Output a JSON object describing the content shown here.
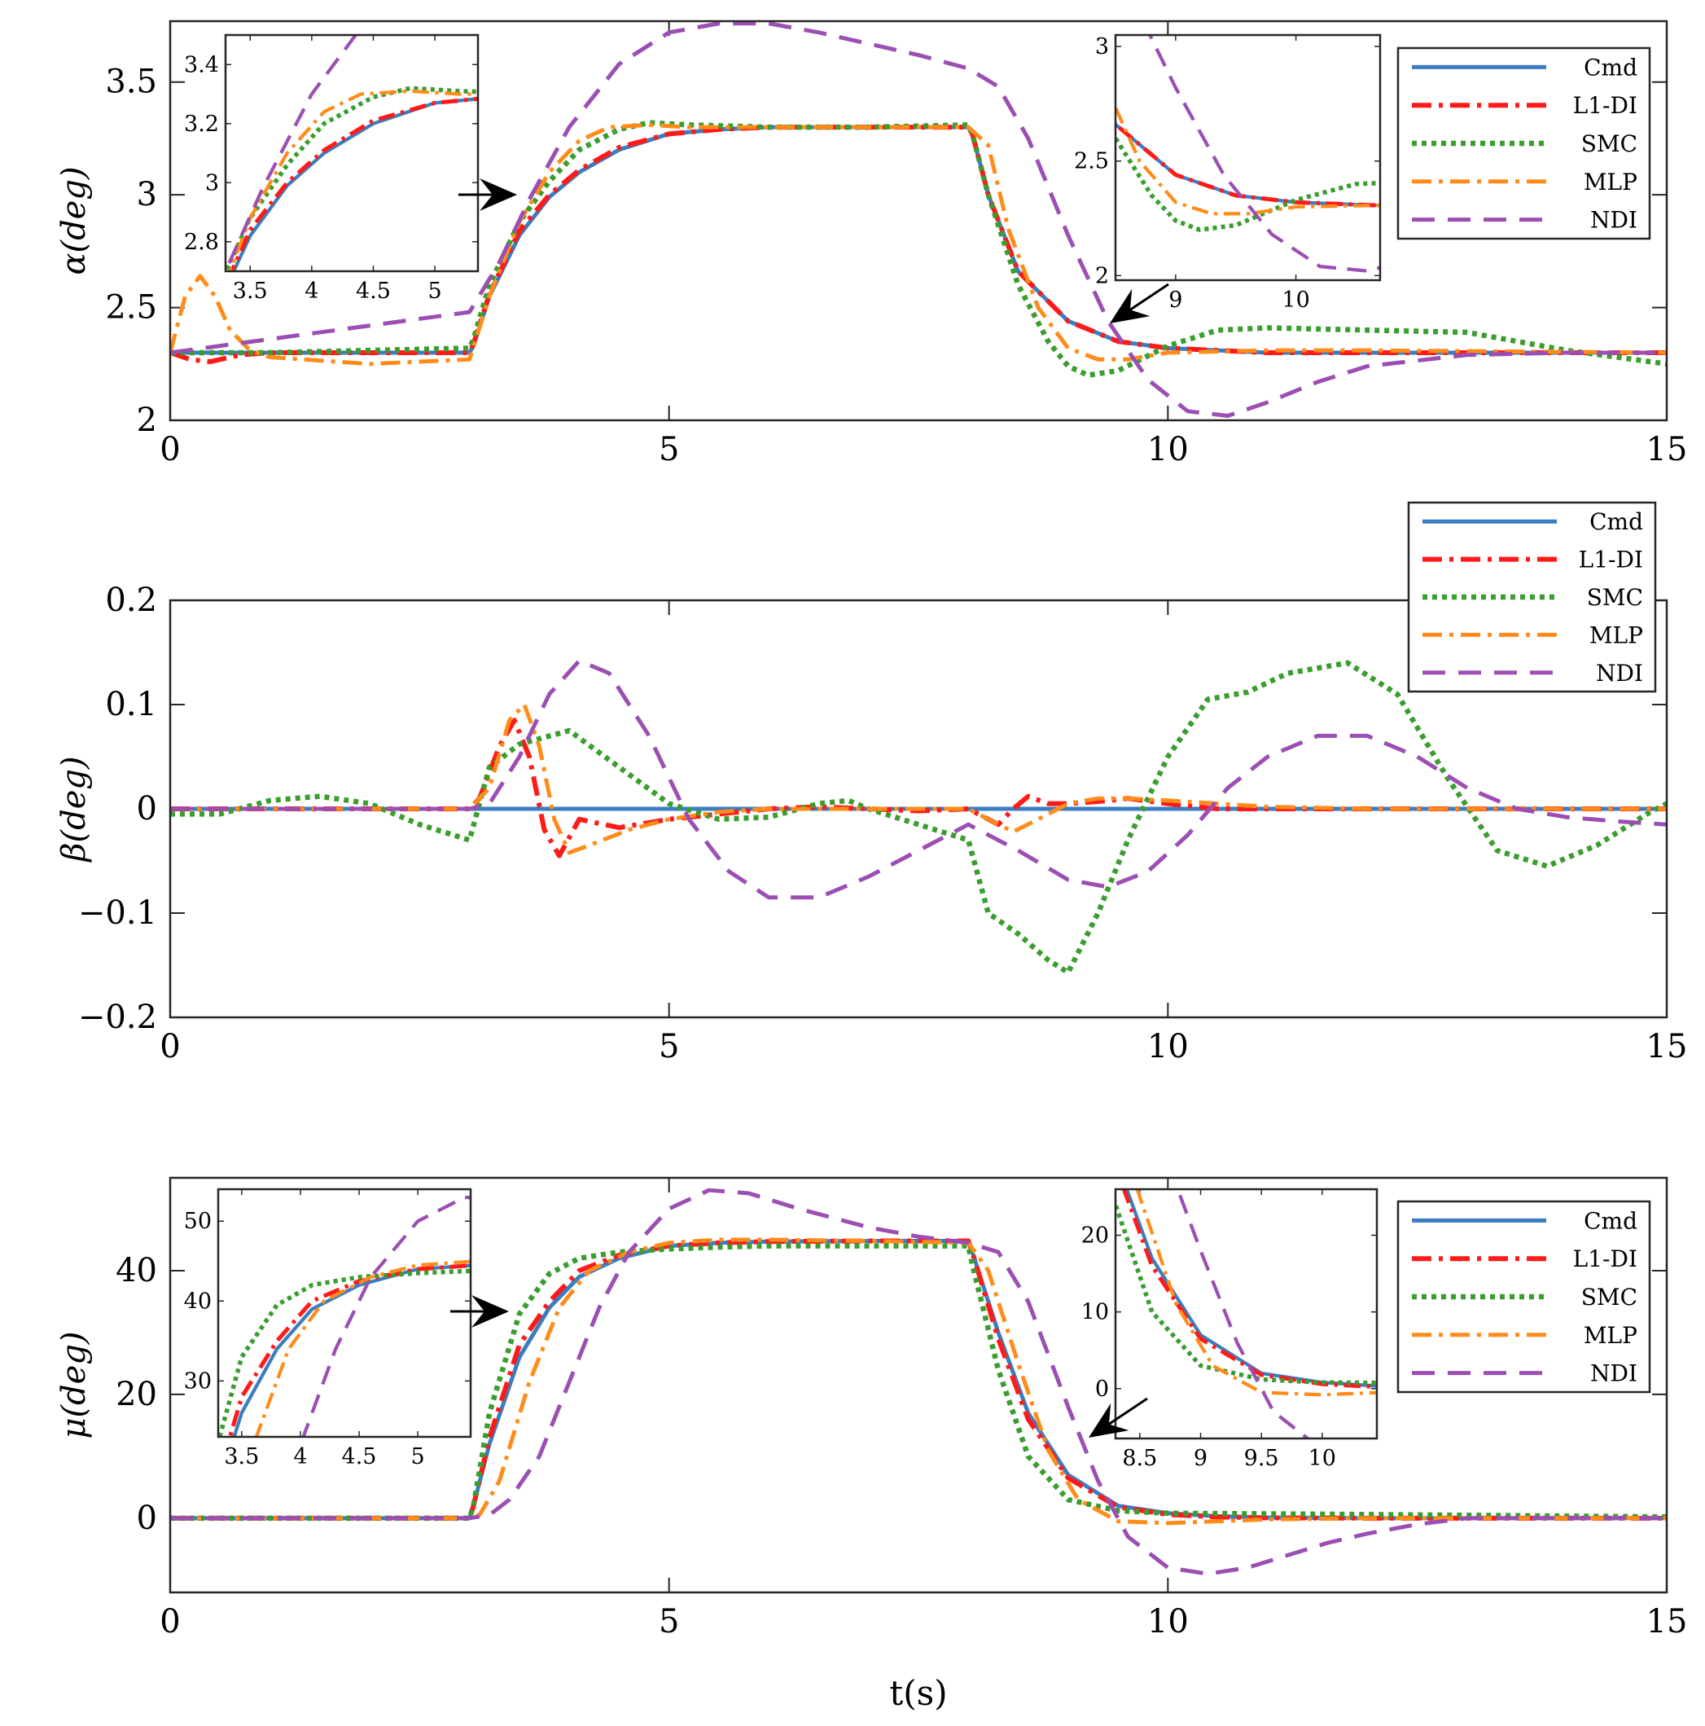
{
  "figure": {
    "xlabel": "t(s)"
  },
  "legend_entries": [
    {
      "name": "Cmd",
      "color": "#3A7DC0",
      "dash": "solid"
    },
    {
      "name": "L1-DI",
      "color": "#FF1A1A",
      "dash": "dashdot"
    },
    {
      "name": "SMC",
      "color": "#3A9E2E",
      "dash": "dotted"
    },
    {
      "name": "MLP",
      "color": "#FF8C1A",
      "dash": "dashdot"
    },
    {
      "name": "NDI",
      "color": "#9B4FB3",
      "dash": "dashed"
    }
  ],
  "chart_data": [
    {
      "id": "alpha",
      "type": "line",
      "title": "",
      "ylabel": "α(deg)",
      "xlabel": "",
      "xlim": [
        0,
        15
      ],
      "ylim": [
        2,
        3.77
      ],
      "xticks": [
        0,
        5,
        10,
        15
      ],
      "xtick_labels": [
        "0",
        "5",
        "10",
        "15"
      ],
      "yticks": [
        2,
        2.5,
        3,
        3.5
      ],
      "ytick_labels": [
        "2",
        "2.5",
        "3",
        "3.5"
      ],
      "legend": "top-right",
      "series": [
        {
          "name": "Cmd",
          "x": [
            0,
            3,
            3.04,
            3.2,
            3.5,
            3.8,
            4.1,
            4.5,
            5,
            5.5,
            6,
            7,
            8,
            8.04,
            8.2,
            8.5,
            9,
            9.5,
            10,
            11,
            12,
            15
          ],
          "y": [
            2.3,
            2.3,
            2.33,
            2.55,
            2.82,
            2.99,
            3.1,
            3.2,
            3.27,
            3.29,
            3.3,
            3.3,
            3.3,
            3.27,
            3.0,
            2.66,
            2.44,
            2.35,
            2.32,
            2.3,
            2.3,
            2.3
          ]
        },
        {
          "name": "L1-DI",
          "x": [
            0,
            0.2,
            0.4,
            0.7,
            1,
            2,
            3,
            3.04,
            3.2,
            3.5,
            3.8,
            4.1,
            4.5,
            5,
            5.5,
            6,
            7,
            8,
            8.04,
            8.2,
            8.5,
            9,
            9.5,
            10,
            11,
            12,
            15
          ],
          "y": [
            2.3,
            2.27,
            2.26,
            2.29,
            2.3,
            2.3,
            2.3,
            2.34,
            2.56,
            2.84,
            3.0,
            3.11,
            3.21,
            3.27,
            3.29,
            3.3,
            3.3,
            3.3,
            3.27,
            3.0,
            2.66,
            2.44,
            2.35,
            2.32,
            2.3,
            2.3,
            2.3
          ]
        },
        {
          "name": "SMC",
          "x": [
            0,
            1,
            2,
            3,
            3.04,
            3.2,
            3.5,
            3.8,
            4.1,
            4.5,
            4.8,
            5.2,
            6,
            7,
            8,
            8.04,
            8.2,
            8.5,
            8.8,
            9,
            9.2,
            9.5,
            10,
            10.5,
            11,
            12,
            13,
            14,
            15
          ],
          "y": [
            2.3,
            2.3,
            2.31,
            2.32,
            2.36,
            2.6,
            2.88,
            3.06,
            3.2,
            3.29,
            3.32,
            3.31,
            3.3,
            3.3,
            3.31,
            3.27,
            3.0,
            2.6,
            2.35,
            2.24,
            2.2,
            2.22,
            2.33,
            2.4,
            2.41,
            2.4,
            2.39,
            2.31,
            2.25
          ]
        },
        {
          "name": "MLP",
          "x": [
            0,
            0.15,
            0.3,
            0.45,
            0.6,
            0.8,
            1,
            2,
            3,
            3.2,
            3.5,
            3.8,
            4.1,
            4.4,
            4.8,
            5.2,
            6,
            7,
            8,
            8.2,
            8.4,
            8.7,
            9,
            9.3,
            9.6,
            10,
            11,
            12,
            15
          ],
          "y": [
            2.3,
            2.55,
            2.64,
            2.55,
            2.4,
            2.31,
            2.28,
            2.25,
            2.27,
            2.55,
            2.88,
            3.1,
            3.24,
            3.3,
            3.31,
            3.3,
            3.3,
            3.3,
            3.3,
            3.22,
            2.85,
            2.5,
            2.32,
            2.27,
            2.27,
            2.3,
            2.31,
            2.31,
            2.3
          ]
        },
        {
          "name": "NDI",
          "x": [
            0,
            1,
            2,
            3,
            3.3,
            3.6,
            4,
            4.5,
            5,
            5.5,
            6,
            6.5,
            7,
            7.5,
            8,
            8.3,
            8.6,
            9,
            9.4,
            9.8,
            10.2,
            10.6,
            11,
            11.5,
            12,
            13,
            14,
            15
          ],
          "y": [
            2.3,
            2.36,
            2.42,
            2.48,
            2.7,
            2.98,
            3.3,
            3.58,
            3.72,
            3.76,
            3.76,
            3.72,
            3.67,
            3.62,
            3.56,
            3.48,
            3.25,
            2.82,
            2.44,
            2.18,
            2.04,
            2.02,
            2.08,
            2.17,
            2.24,
            2.29,
            2.3,
            2.3
          ]
        }
      ],
      "inset": {
        "xlim": [
          3.3,
          5.35
        ],
        "ylim": [
          2.7,
          3.5
        ],
        "xticks": [
          3.5,
          4,
          4.5,
          5
        ],
        "xtick_labels": [
          "3.5",
          "4",
          "4.5",
          "5"
        ],
        "yticks": [
          2.8,
          3.0,
          3.2,
          3.4
        ],
        "ytick_labels": [
          "2.8",
          "3",
          "3.2",
          "3.4"
        ]
      },
      "inset2": {
        "xlim": [
          8.5,
          10.7
        ],
        "ylim": [
          1.98,
          3.05
        ],
        "xticks": [
          9,
          10
        ],
        "xtick_labels": [
          "9",
          "10"
        ],
        "yticks": [
          2,
          2.5,
          3
        ],
        "ytick_labels": [
          "2",
          "2.5",
          "3"
        ]
      }
    },
    {
      "id": "beta",
      "type": "line",
      "title": "",
      "ylabel": "β(deg)",
      "xlabel": "",
      "xlim": [
        0,
        15
      ],
      "ylim": [
        -0.2,
        0.2
      ],
      "xticks": [
        0,
        5,
        10,
        15
      ],
      "xtick_labels": [
        "0",
        "5",
        "10",
        "15"
      ],
      "yticks": [
        -0.2,
        -0.1,
        0,
        0.1,
        0.2
      ],
      "ytick_labels": [
        "−0.2",
        "−0.1",
        "0",
        "0.1",
        "0.2"
      ],
      "legend": "top-right",
      "series": [
        {
          "name": "Cmd",
          "x": [
            0,
            15
          ],
          "y": [
            0,
            0
          ]
        },
        {
          "name": "L1-DI",
          "x": [
            0,
            3,
            3.1,
            3.3,
            3.45,
            3.6,
            3.75,
            3.9,
            4.1,
            4.5,
            5,
            5.5,
            6,
            6.5,
            7,
            7.5,
            8,
            8.3,
            8.45,
            8.6,
            8.8,
            9,
            9.3,
            9.6,
            10,
            10.5,
            11,
            12,
            13,
            15
          ],
          "y": [
            0,
            0,
            0.01,
            0.06,
            0.085,
            0.05,
            -0.02,
            -0.045,
            -0.01,
            -0.018,
            -0.01,
            -0.005,
            0,
            0.002,
            0,
            -0.002,
            0,
            -0.015,
            0,
            0.012,
            0.005,
            0.005,
            0.007,
            0.01,
            0.005,
            0,
            0,
            0,
            0,
            0
          ]
        },
        {
          "name": "SMC",
          "x": [
            0,
            0.5,
            1,
            1.5,
            2,
            2.5,
            3,
            3.2,
            3.5,
            4,
            4.5,
            5,
            5.5,
            6,
            6.5,
            6.8,
            7,
            7.5,
            8,
            8.2,
            8.5,
            8.8,
            9,
            9.3,
            9.6,
            10,
            10.4,
            10.8,
            11.2,
            11.8,
            12.3,
            12.8,
            13.3,
            13.8,
            14.3,
            14.8,
            15
          ],
          "y": [
            -0.005,
            -0.005,
            0.008,
            0.012,
            0.005,
            -0.015,
            -0.03,
            0.04,
            0.062,
            0.075,
            0.04,
            0.005,
            -0.01,
            -0.008,
            0.005,
            0.008,
            0,
            -0.015,
            -0.03,
            -0.1,
            -0.12,
            -0.145,
            -0.157,
            -0.1,
            -0.03,
            0.05,
            0.105,
            0.112,
            0.13,
            0.14,
            0.11,
            0.03,
            -0.04,
            -0.055,
            -0.035,
            -0.005,
            0.005
          ]
        },
        {
          "name": "MLP",
          "x": [
            0,
            3,
            3.2,
            3.4,
            3.55,
            3.7,
            3.85,
            4,
            4.2,
            4.6,
            5,
            5.5,
            6,
            7,
            8,
            8.2,
            8.45,
            8.7,
            9,
            9.3,
            9.6,
            10,
            11,
            12,
            15
          ],
          "y": [
            0,
            0,
            0.02,
            0.085,
            0.1,
            0.06,
            -0.01,
            -0.042,
            -0.035,
            -0.02,
            -0.01,
            -0.003,
            0,
            0,
            0,
            -0.01,
            -0.022,
            -0.01,
            0.005,
            0.01,
            0.01,
            0.008,
            0.002,
            0,
            0
          ]
        },
        {
          "name": "NDI",
          "x": [
            0,
            3,
            3.2,
            3.5,
            3.8,
            4.1,
            4.4,
            4.8,
            5.2,
            5.6,
            6,
            6.5,
            7,
            7.5,
            8,
            8.5,
            9,
            9.4,
            9.8,
            10.2,
            10.6,
            11,
            11.5,
            12,
            12.5,
            13,
            13.5,
            14,
            14.5,
            15
          ],
          "y": [
            0,
            0,
            0.005,
            0.05,
            0.11,
            0.142,
            0.13,
            0.07,
            -0.01,
            -0.06,
            -0.085,
            -0.085,
            -0.065,
            -0.04,
            -0.015,
            -0.04,
            -0.068,
            -0.075,
            -0.06,
            -0.025,
            0.02,
            0.05,
            0.07,
            0.07,
            0.05,
            0.02,
            0,
            -0.008,
            -0.012,
            -0.015
          ]
        }
      ]
    },
    {
      "id": "mu",
      "type": "line",
      "title": "",
      "ylabel": "μ(deg)",
      "xlabel": "t(s)",
      "xlim": [
        0,
        15
      ],
      "ylim": [
        -12,
        55
      ],
      "xticks": [
        0,
        5,
        10,
        15
      ],
      "xtick_labels": [
        "0",
        "5",
        "10",
        "15"
      ],
      "yticks": [
        0,
        20,
        40
      ],
      "ytick_labels": [
        "0",
        "20",
        "40"
      ],
      "legend": "top-right",
      "series": [
        {
          "name": "Cmd",
          "x": [
            0,
            3,
            3.04,
            3.2,
            3.5,
            3.8,
            4.1,
            4.5,
            5,
            5.5,
            6,
            7,
            8,
            8.04,
            8.3,
            8.6,
            9,
            9.5,
            10,
            10.5,
            11,
            12,
            15
          ],
          "y": [
            0,
            0,
            2,
            12,
            26,
            34,
            39,
            42,
            44,
            44.5,
            44.7,
            44.8,
            44.8,
            43,
            30,
            17,
            7,
            2,
            0.8,
            0.3,
            0.1,
            0,
            0
          ]
        },
        {
          "name": "L1-DI",
          "x": [
            0,
            3,
            3.04,
            3.2,
            3.5,
            3.8,
            4.1,
            4.5,
            5,
            5.5,
            6,
            7,
            8,
            8.04,
            8.3,
            8.6,
            9,
            9.5,
            10,
            10.5,
            11,
            12,
            15
          ],
          "y": [
            0,
            0,
            2,
            13,
            28,
            35,
            40,
            42.5,
            44,
            44.5,
            44.7,
            44.8,
            44.8,
            43,
            29,
            16,
            6.5,
            1.8,
            0.6,
            0.2,
            0.05,
            0,
            0
          ]
        },
        {
          "name": "SMC",
          "x": [
            0,
            3,
            3.04,
            3.2,
            3.5,
            3.8,
            4.1,
            4.5,
            5,
            5.5,
            6,
            7,
            8,
            8.04,
            8.3,
            8.6,
            9,
            9.5,
            10,
            11,
            12,
            15
          ],
          "y": [
            0,
            0,
            2,
            17,
            33,
            39.5,
            42,
            43,
            43.5,
            43.8,
            44,
            44,
            44,
            41,
            24,
            10,
            3,
            1.2,
            0.8,
            0.7,
            0.6,
            0.2
          ]
        },
        {
          "name": "MLP",
          "x": [
            0,
            3,
            3.1,
            3.3,
            3.6,
            3.9,
            4.2,
            4.6,
            5,
            5.5,
            6,
            7,
            8,
            8.2,
            8.5,
            8.8,
            9.1,
            9.5,
            10,
            10.5,
            11,
            12,
            15
          ],
          "y": [
            0,
            0,
            0.5,
            6,
            22,
            34,
            40,
            43,
            44.5,
            45,
            45,
            44.8,
            44.5,
            40,
            25,
            11,
            3,
            -0.5,
            -0.8,
            -0.5,
            -0.2,
            0,
            0
          ]
        },
        {
          "name": "NDI",
          "x": [
            0,
            3,
            3.2,
            3.4,
            3.7,
            4,
            4.3,
            4.6,
            5,
            5.4,
            5.8,
            6.3,
            7,
            7.5,
            8,
            8.3,
            8.6,
            9,
            9.3,
            9.6,
            10,
            10.4,
            10.8,
            11.2,
            11.6,
            12,
            12.5,
            13,
            14,
            15
          ],
          "y": [
            0,
            0,
            0.5,
            3,
            10,
            22,
            34,
            43,
            50,
            53,
            52.5,
            50,
            47,
            45.5,
            44.5,
            43,
            35,
            18,
            6,
            -3,
            -8,
            -9,
            -8,
            -6,
            -4,
            -2.5,
            -1,
            0,
            0,
            0
          ]
        }
      ],
      "inset": {
        "xlim": [
          3.3,
          5.45
        ],
        "ylim": [
          23,
          54
        ],
        "xticks": [
          3.5,
          4,
          4.5,
          5
        ],
        "xtick_labels": [
          "3.5",
          "4",
          "4.5",
          "5"
        ],
        "yticks": [
          30,
          40,
          50
        ],
        "ytick_labels": [
          "30",
          "40",
          "50"
        ]
      },
      "inset2": {
        "xlim": [
          8.3,
          10.45
        ],
        "ylim": [
          -6.5,
          26
        ],
        "xticks": [
          8.5,
          9,
          9.5,
          10
        ],
        "xtick_labels": [
          "8.5",
          "9",
          "9.5",
          "10"
        ],
        "yticks": [
          0,
          10,
          20
        ],
        "ytick_labels": [
          "0",
          "10",
          "20"
        ]
      }
    }
  ]
}
